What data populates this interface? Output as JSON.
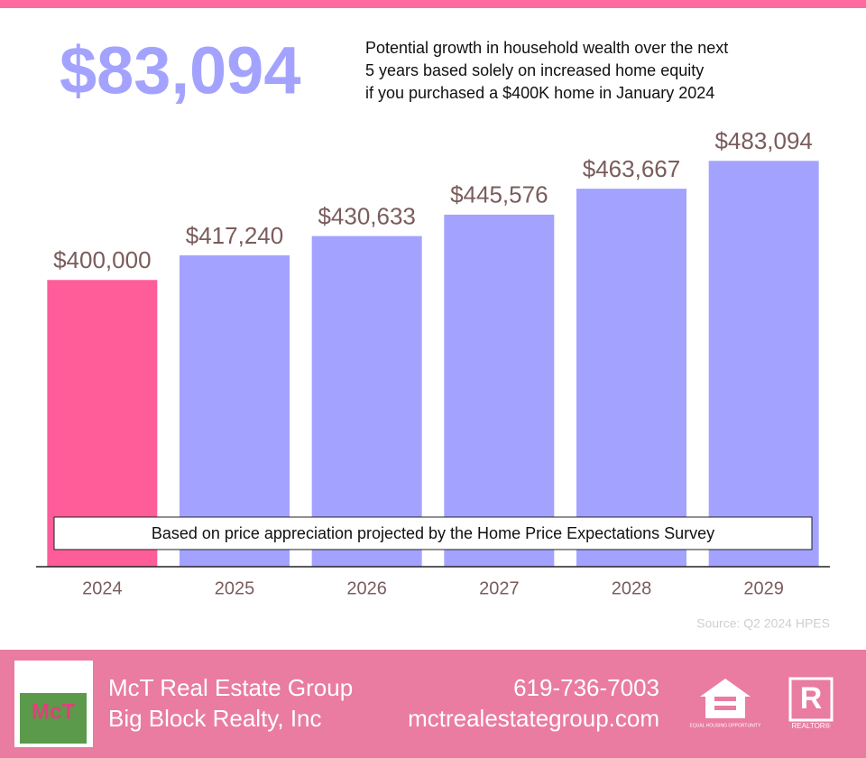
{
  "header": {
    "headline": "$83,094",
    "description": [
      "Potential growth in household wealth over the next",
      "5 years based solely on increased home equity",
      "if you purchased a $400K home in January 2024"
    ]
  },
  "chart_data": {
    "type": "bar",
    "categories": [
      "2024",
      "2025",
      "2026",
      "2027",
      "2028",
      "2029"
    ],
    "values": [
      400000,
      417240,
      430633,
      445576,
      463667,
      483094
    ],
    "value_labels": [
      "$400,000",
      "$417,240",
      "$430,633",
      "$445,576",
      "$463,667",
      "$483,094"
    ],
    "colors": [
      "#ff5c9a",
      "#a3a3ff",
      "#a3a3ff",
      "#a3a3ff",
      "#a3a3ff",
      "#a3a3ff"
    ],
    "ylim": [
      200000,
      500000
    ],
    "annotation": "Based on price appreciation projected by the Home Price Expectations Survey",
    "source": "Source: Q2 2024 HPES"
  },
  "footer": {
    "company": "McT Real Estate Group",
    "brokerage": "Big Block Realty, Inc",
    "phone": "619-736-7003",
    "website": "mctrealestategroup.com",
    "logo_text": "McT",
    "equal_housing": "EQUAL HOUSING OPPORTUNITY",
    "realtor": "REALTOR®"
  }
}
